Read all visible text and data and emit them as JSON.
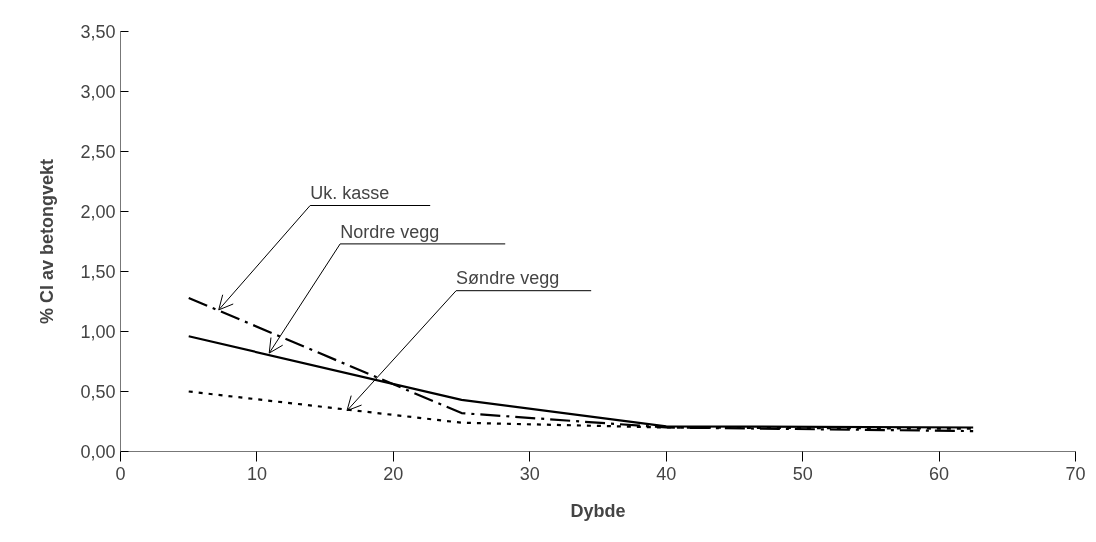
{
  "chart_data": {
    "type": "line",
    "xlabel": "Dybde",
    "ylabel": "% Cl av betongvekt",
    "xlim": [
      0,
      70
    ],
    "xticks": [
      0,
      10,
      20,
      30,
      40,
      50,
      60,
      70
    ],
    "ylim": [
      0,
      3.5
    ],
    "yticks": [
      {
        "value": 0,
        "label": "0,00"
      },
      {
        "value": 0.5,
        "label": "0,50"
      },
      {
        "value": 1,
        "label": "1,00"
      },
      {
        "value": 1.5,
        "label": "1,50"
      },
      {
        "value": 2,
        "label": "2,00"
      },
      {
        "value": 2.5,
        "label": "2,50"
      },
      {
        "value": 3,
        "label": "3,00"
      },
      {
        "value": 3.5,
        "label": "3,50"
      }
    ],
    "x": [
      5,
      25,
      40,
      62.5
    ],
    "series": [
      {
        "color": "#000000",
        "line_style": "dashed",
        "values": [
          1.28,
          0.32,
          0.2,
          0.17
        ]
      },
      {
        "color": "#000000",
        "line_style": "solid",
        "values": [
          0.96,
          0.43,
          0.21,
          0.2
        ]
      },
      {
        "color": "#000000",
        "line_style": "dotted",
        "values": [
          0.5,
          0.24,
          0.2,
          0.19
        ]
      }
    ],
    "annotations": [
      {
        "text": "Uk. kasse",
        "x": 7.2,
        "y": 1.18
      },
      {
        "text": "Nordre vegg",
        "x": 10.9,
        "y": 0.82
      },
      {
        "text": "Søndre vegg",
        "x": 16.6,
        "y": 0.34
      }
    ]
  }
}
